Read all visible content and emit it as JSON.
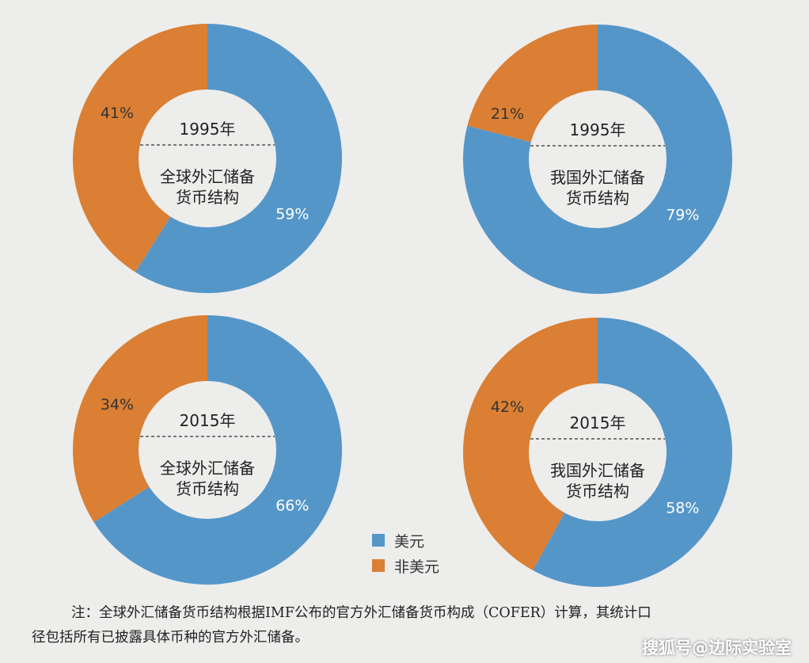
{
  "colors": {
    "usd": "#5596c9",
    "non_usd": "#da7f33",
    "center": "#ededec",
    "background": "#ededec"
  },
  "chart_data": [
    {
      "type": "pie",
      "year_label": "1995年",
      "center_lines": [
        "全球外汇储备",
        "货币结构"
      ],
      "slices": [
        {
          "label": "美元",
          "value": 59,
          "text": "59%"
        },
        {
          "label": "非美元",
          "value": 41,
          "text": "41%"
        }
      ]
    },
    {
      "type": "pie",
      "year_label": "1995年",
      "center_lines": [
        "我国外汇储备",
        "货币结构"
      ],
      "slices": [
        {
          "label": "美元",
          "value": 79,
          "text": "79%"
        },
        {
          "label": "非美元",
          "value": 21,
          "text": "21%"
        }
      ]
    },
    {
      "type": "pie",
      "year_label": "2015年",
      "center_lines": [
        "全球外汇储备",
        "货币结构"
      ],
      "slices": [
        {
          "label": "美元",
          "value": 66,
          "text": "66%"
        },
        {
          "label": "非美元",
          "value": 34,
          "text": "34%"
        }
      ]
    },
    {
      "type": "pie",
      "year_label": "2015年",
      "center_lines": [
        "我国外汇储备",
        "货币结构"
      ],
      "slices": [
        {
          "label": "美元",
          "value": 58,
          "text": "58%"
        },
        {
          "label": "非美元",
          "value": 42,
          "text": "42%"
        }
      ]
    }
  ],
  "legend": [
    {
      "label": "美元",
      "color": "#5596c9"
    },
    {
      "label": "非美元",
      "color": "#da7f33"
    }
  ],
  "note": {
    "line1": "注：全球外汇储备货币结构根据IMF公布的官方外汇储备货币构成（COFER）计算，其统计口",
    "line2": "径包括所有已披露具体币种的官方外汇储备。"
  },
  "watermark": "搜狐号@边际实验室"
}
